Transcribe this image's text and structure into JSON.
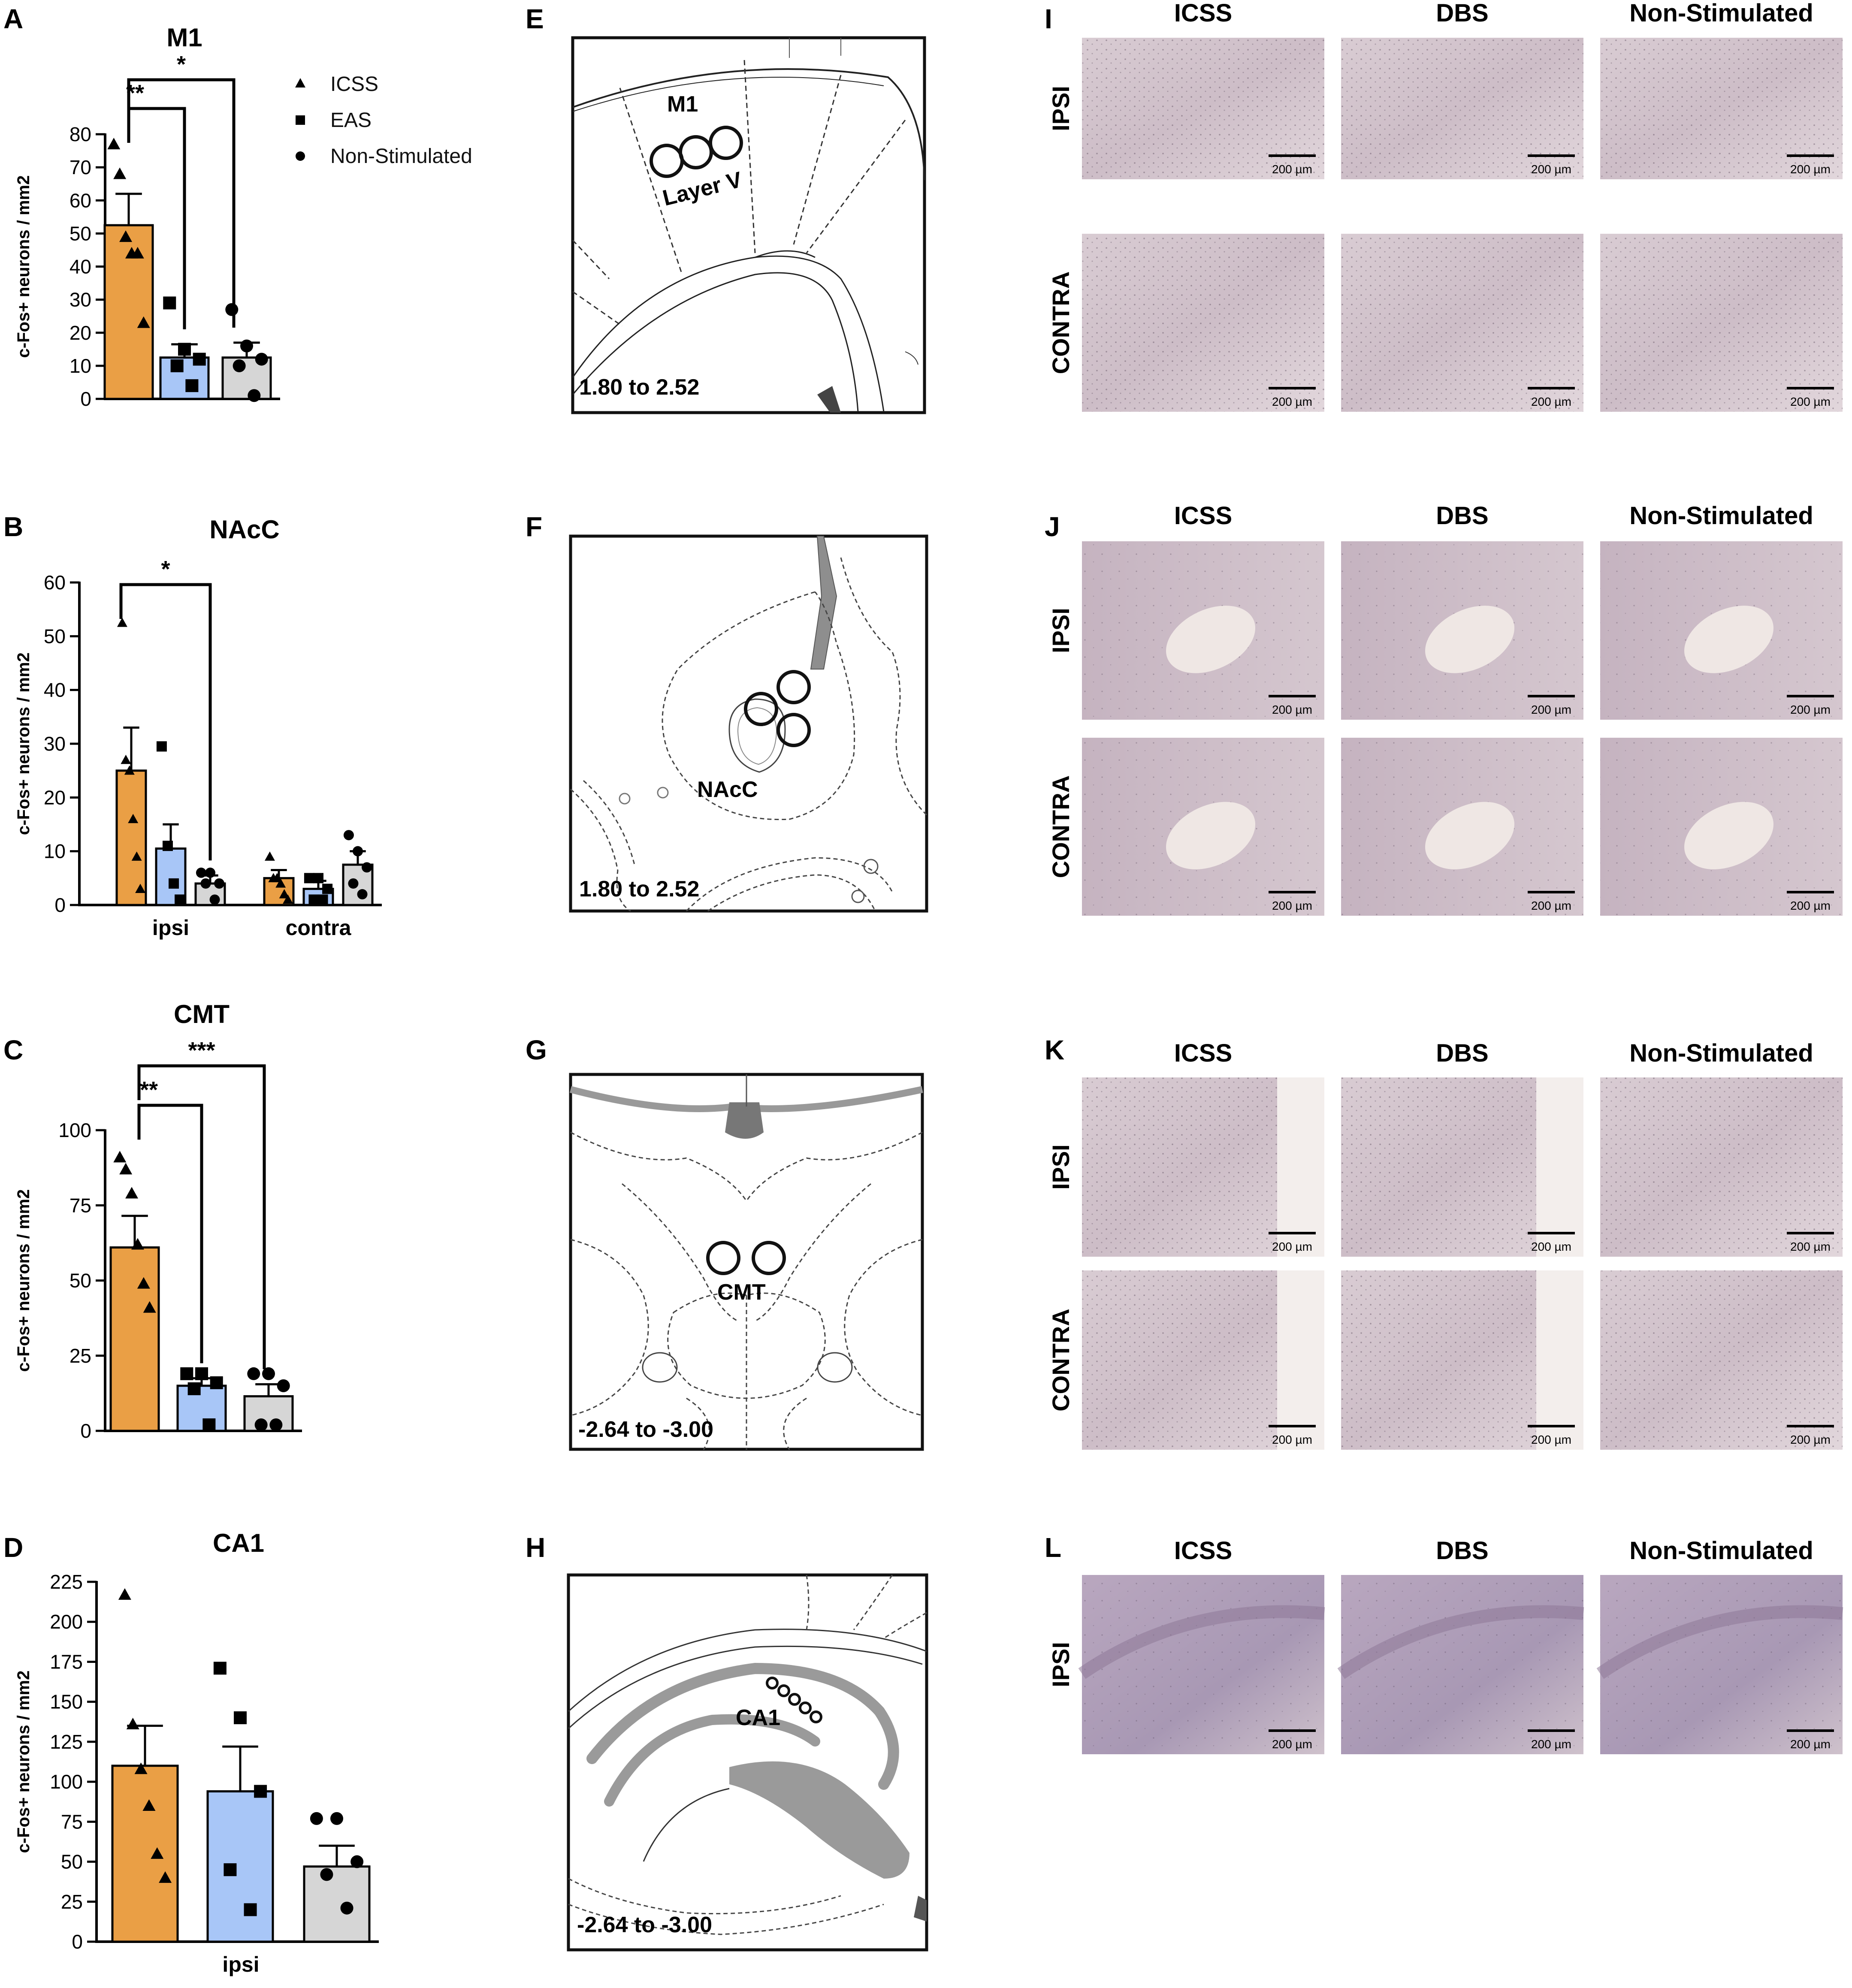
{
  "colors": {
    "ICSS": "#ea9f45",
    "EAS": "#a8c6f7",
    "Non-Stimulated": "#d6d6d6",
    "axis": "#000000",
    "atlas_fill": "#9a9a9a"
  },
  "legend": {
    "items": [
      {
        "label": "ICSS",
        "marker": "triangle-icon"
      },
      {
        "label": "EAS",
        "marker": "square-icon"
      },
      {
        "label": "Non-Stimulated",
        "marker": "circle-icon"
      }
    ]
  },
  "chart_data": [
    {
      "panel": "A",
      "type": "bar",
      "title": "M1",
      "ylabel": "c-Fos+ neurons / mm2",
      "ylim": [
        0,
        80
      ],
      "yticks": [
        0,
        10,
        20,
        30,
        40,
        50,
        60,
        70,
        80
      ],
      "groups": [
        {
          "label": "",
          "bars": [
            {
              "series": "ICSS",
              "mean": 52.5,
              "sem": 9.5,
              "points": [
                77,
                68,
                49,
                44,
                44,
                23
              ]
            },
            {
              "series": "EAS",
              "mean": 12.5,
              "sem": 4,
              "points": [
                29,
                15,
                12,
                10,
                4
              ]
            },
            {
              "series": "Non-Stimulated",
              "mean": 12.5,
              "sem": 4.5,
              "points": [
                27,
                16,
                12,
                10,
                1
              ]
            }
          ]
        }
      ],
      "significance": [
        {
          "from": 0,
          "to": 1,
          "label": "**"
        },
        {
          "from": 0,
          "to": 2,
          "label": "*"
        }
      ]
    },
    {
      "panel": "B",
      "type": "bar",
      "title": "NAcC",
      "ylabel": "c-Fos+ neurons / mm2",
      "ylim": [
        0,
        60
      ],
      "yticks": [
        0,
        10,
        20,
        30,
        40,
        50,
        60
      ],
      "groups": [
        {
          "label": "ipsi",
          "bars": [
            {
              "series": "ICSS",
              "mean": 25,
              "sem": 8,
              "points": [
                52.5,
                27,
                25,
                16,
                9,
                3
              ]
            },
            {
              "series": "EAS",
              "mean": 10.5,
              "sem": 4.5,
              "points": [
                29.5,
                11,
                4,
                1
              ]
            },
            {
              "series": "Non-Stimulated",
              "mean": 4,
              "sem": 1.5,
              "points": [
                6,
                6,
                4,
                4,
                1
              ]
            }
          ]
        },
        {
          "label": "contra",
          "bars": [
            {
              "series": "ICSS",
              "mean": 5,
              "sem": 1.5,
              "points": [
                9,
                5,
                5,
                4,
                2,
                1
              ]
            },
            {
              "series": "EAS",
              "mean": 3,
              "sem": 1.5,
              "points": [
                5,
                5,
                3,
                1,
                1
              ]
            },
            {
              "series": "Non-Stimulated",
              "mean": 7.5,
              "sem": 2.5,
              "points": [
                13,
                10,
                7,
                4,
                2
              ]
            }
          ]
        }
      ],
      "significance": [
        {
          "from": 0,
          "to": 2,
          "label": "*"
        }
      ]
    },
    {
      "panel": "C",
      "type": "bar",
      "title": "CMT",
      "ylabel": "c-Fos+ neurons / mm2",
      "ylim": [
        0,
        100
      ],
      "yticks": [
        0,
        25,
        50,
        75,
        100
      ],
      "groups": [
        {
          "label": "",
          "bars": [
            {
              "series": "ICSS",
              "mean": 61,
              "sem": 10.5,
              "points": [
                91,
                87,
                79,
                62,
                49,
                41
              ]
            },
            {
              "series": "EAS",
              "mean": 15,
              "sem": 2.5,
              "points": [
                19,
                19,
                16,
                14,
                2
              ]
            },
            {
              "series": "Non-Stimulated",
              "mean": 11.5,
              "sem": 4,
              "points": [
                19,
                19,
                15,
                2,
                2
              ]
            }
          ]
        }
      ],
      "significance": [
        {
          "from": 0,
          "to": 1,
          "label": "**"
        },
        {
          "from": 0,
          "to": 2,
          "label": "***"
        }
      ]
    },
    {
      "panel": "D",
      "type": "bar",
      "title": "CA1",
      "ylabel": "c-Fos+ neurons / mm2",
      "ylim": [
        0,
        225
      ],
      "yticks": [
        0,
        25,
        50,
        75,
        100,
        125,
        150,
        175,
        200,
        225
      ],
      "groups": [
        {
          "label": "ipsi",
          "bars": [
            {
              "series": "ICSS",
              "mean": 110,
              "sem": 25,
              "points": [
                217,
                136,
                108,
                85,
                55,
                40
              ]
            },
            {
              "series": "EAS",
              "mean": 94,
              "sem": 28,
              "points": [
                171,
                140,
                94,
                45,
                20
              ]
            },
            {
              "series": "Non-Stimulated",
              "mean": 47,
              "sem": 13,
              "points": [
                77,
                77,
                50,
                42,
                21
              ]
            }
          ]
        }
      ],
      "significance": []
    }
  ],
  "atlas": {
    "E": {
      "region": "M1",
      "sublabel": "Layer V",
      "coord": "1.80 to 2.52"
    },
    "F": {
      "region": "NAcC",
      "sublabel": "",
      "coord": "1.80 to 2.52"
    },
    "G": {
      "region": "CMT",
      "sublabel": "",
      "coord": "-2.64 to -3.00"
    },
    "H": {
      "region": "CA1",
      "sublabel": "",
      "coord": "-2.64 to -3.00"
    }
  },
  "micrographs": {
    "columns": [
      "ICSS",
      "DBS",
      "Non-Stimulated"
    ],
    "scale_bar": "200 µm",
    "rows": [
      {
        "panel": "I",
        "sections": [
          "IPSI",
          "CONTRA"
        ]
      },
      {
        "panel": "J",
        "sections": [
          "IPSI",
          "CONTRA"
        ]
      },
      {
        "panel": "K",
        "sections": [
          "IPSI",
          "CONTRA"
        ]
      },
      {
        "panel": "L",
        "sections": [
          "IPSI"
        ]
      }
    ]
  }
}
